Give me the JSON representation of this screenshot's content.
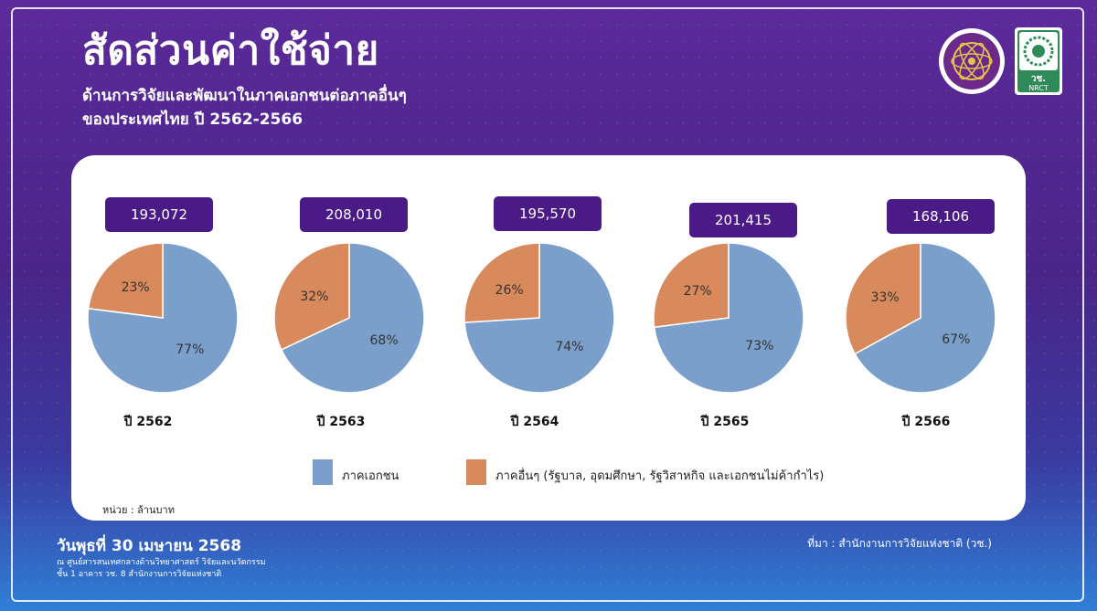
{
  "header": {
    "title": "สัดส่วนค่าใช้จ่าย",
    "subtitle_line1": "ด้านการวิจัยและพัฒนาในภาคเอกชนต่อภาคอื่นๆ",
    "subtitle_line2": "ของประเทศไทย ปี 2562-2566",
    "logo2_text1": "วช.",
    "logo2_text2": "NRCT"
  },
  "chart_data": {
    "type": "pie",
    "charts": [
      {
        "year_label": "ปี 2562",
        "total": "193,072",
        "slices": [
          {
            "name": "ภาคเอกชน",
            "value": 77,
            "label": "77%"
          },
          {
            "name": "ภาคอื่นๆ",
            "value": 23,
            "label": "23%"
          }
        ]
      },
      {
        "year_label": "ปี 2563",
        "total": "208,010",
        "slices": [
          {
            "name": "ภาคเอกชน",
            "value": 68,
            "label": "68%"
          },
          {
            "name": "ภาคอื่นๆ",
            "value": 32,
            "label": "32%"
          }
        ]
      },
      {
        "year_label": "ปี 2564",
        "total": "195,570",
        "slices": [
          {
            "name": "ภาคเอกชน",
            "value": 74,
            "label": "74%"
          },
          {
            "name": "ภาคอื่นๆ",
            "value": 26,
            "label": "26%"
          }
        ]
      },
      {
        "year_label": "ปี 2565",
        "total": "201,415",
        "slices": [
          {
            "name": "ภาคเอกชน",
            "value": 73,
            "label": "73%"
          },
          {
            "name": "ภาคอื่นๆ",
            "value": 27,
            "label": "27%"
          }
        ]
      },
      {
        "year_label": "ปี 2566",
        "total": "168,106",
        "slices": [
          {
            "name": "ภาคเอกชน",
            "value": 67,
            "label": "67%"
          },
          {
            "name": "ภาคอื่นๆ",
            "value": 33,
            "label": "33%"
          }
        ]
      }
    ],
    "legend": [
      {
        "name": "ภาคเอกชน",
        "color": "#7b9fcb"
      },
      {
        "name": "ภาคอื่นๆ (รัฐบาล, อุดมศึกษา, รัฐวิสาหกิจ และเอกชนไม่ค้ากำไร)",
        "color": "#d98a5c"
      }
    ],
    "unit": "หน่วย : ล้านบาท",
    "colors": {
      "private": "#7b9fcb",
      "other": "#d98a5c"
    }
  },
  "footer": {
    "date": "วันพุธที่ 30 เมษายน 2568",
    "location_line1": "ณ ศูนย์สารสนเทศกลางด้านวิทยาศาสตร์ วิจัยและนวัตกรรม",
    "location_line2": "ชั้น 1 อาคาร วช. 8 สำนักงานการวิจัยแห่งชาติ",
    "source": "ที่มา : สำนักงานการวิจัยแห่งชาติ (วช.)"
  }
}
